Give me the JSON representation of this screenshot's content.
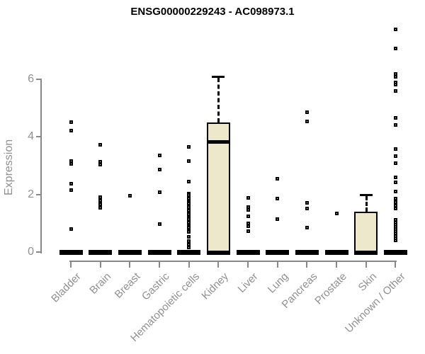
{
  "chart_data": {
    "type": "boxplot",
    "title": "ENSG00000229243 - AC098973.1",
    "ylabel": "Expression",
    "xlabel": "",
    "yticks": [
      0,
      2,
      4,
      6
    ],
    "ylim": [
      0,
      7.9
    ],
    "grid": false,
    "legend": "none",
    "point_shape": "open-square",
    "colors": {
      "box_fill": "#EDE8CB",
      "box_border": "#000000",
      "point": "#000000",
      "axis_line": "#888888",
      "axis_text": "#909090",
      "title_text": "#000000"
    },
    "categories": [
      "Bladder",
      "Brain",
      "Breast",
      "Gastric",
      "Hematopoietic cells",
      "Kidney",
      "Liver",
      "Lung",
      "Pancreas",
      "Prostate",
      "Skin",
      "Unknown / Other"
    ],
    "series": [
      {
        "name": "Bladder",
        "zero_bar": true,
        "box": null,
        "points": [
          4.5,
          4.2,
          3.15,
          3.05,
          2.36,
          2.16,
          0.8
        ]
      },
      {
        "name": "Brain",
        "zero_bar": true,
        "box": null,
        "points": [
          3.72,
          3.13,
          3.02,
          1.9,
          1.78,
          1.65,
          1.54
        ]
      },
      {
        "name": "Breast",
        "zero_bar": true,
        "box": null,
        "points": [
          1.94
        ]
      },
      {
        "name": "Gastric",
        "zero_bar": true,
        "box": null,
        "points": [
          3.36,
          2.87,
          2.07,
          0.98
        ]
      },
      {
        "name": "Hematopoietic cells",
        "zero_bar": true,
        "box": null,
        "points": [
          3.65,
          3.15,
          2.45,
          2.03,
          1.97,
          1.91,
          1.85,
          1.79,
          1.73,
          1.67,
          1.61,
          1.55,
          1.49,
          1.43,
          1.37,
          1.31,
          1.25,
          1.19,
          1.13,
          1.07,
          1.01,
          0.95,
          0.89,
          0.84,
          0.76,
          0.69,
          0.52,
          0.39,
          0.27,
          0.17
        ]
      },
      {
        "name": "Kidney",
        "zero_bar": true,
        "box": {
          "q1": 0,
          "median": 3.82,
          "q3": 4.5,
          "whisker_high": 6.1
        },
        "points": []
      },
      {
        "name": "Liver",
        "zero_bar": true,
        "box": null,
        "points": [
          1.87,
          1.55,
          1.45,
          1.25,
          1.0,
          0.9,
          0.72
        ]
      },
      {
        "name": "Lung",
        "zero_bar": true,
        "box": null,
        "points": [
          2.53,
          1.85,
          1.13
        ]
      },
      {
        "name": "Pancreas",
        "zero_bar": true,
        "box": null,
        "points": [
          4.84,
          4.52,
          1.71,
          1.5,
          0.84
        ]
      },
      {
        "name": "Prostate",
        "zero_bar": true,
        "box": null,
        "points": [
          1.33
        ]
      },
      {
        "name": "Skin",
        "zero_bar": true,
        "box": {
          "q1": 0,
          "median": 0,
          "q3": 1.4,
          "whisker_high": 2.0
        },
        "points": []
      },
      {
        "name": "Unknown / Other",
        "zero_bar": true,
        "box": null,
        "points": [
          7.72,
          7.06,
          6.17,
          6.07,
          5.87,
          5.8,
          5.59,
          4.65,
          4.4,
          3.58,
          3.33,
          3.09,
          2.59,
          2.43,
          2.1,
          1.85,
          1.73,
          1.6,
          1.52,
          1.11,
          1.03,
          0.95,
          0.88,
          0.8,
          0.72,
          0.64,
          0.56,
          0.48,
          0.4
        ]
      }
    ]
  }
}
